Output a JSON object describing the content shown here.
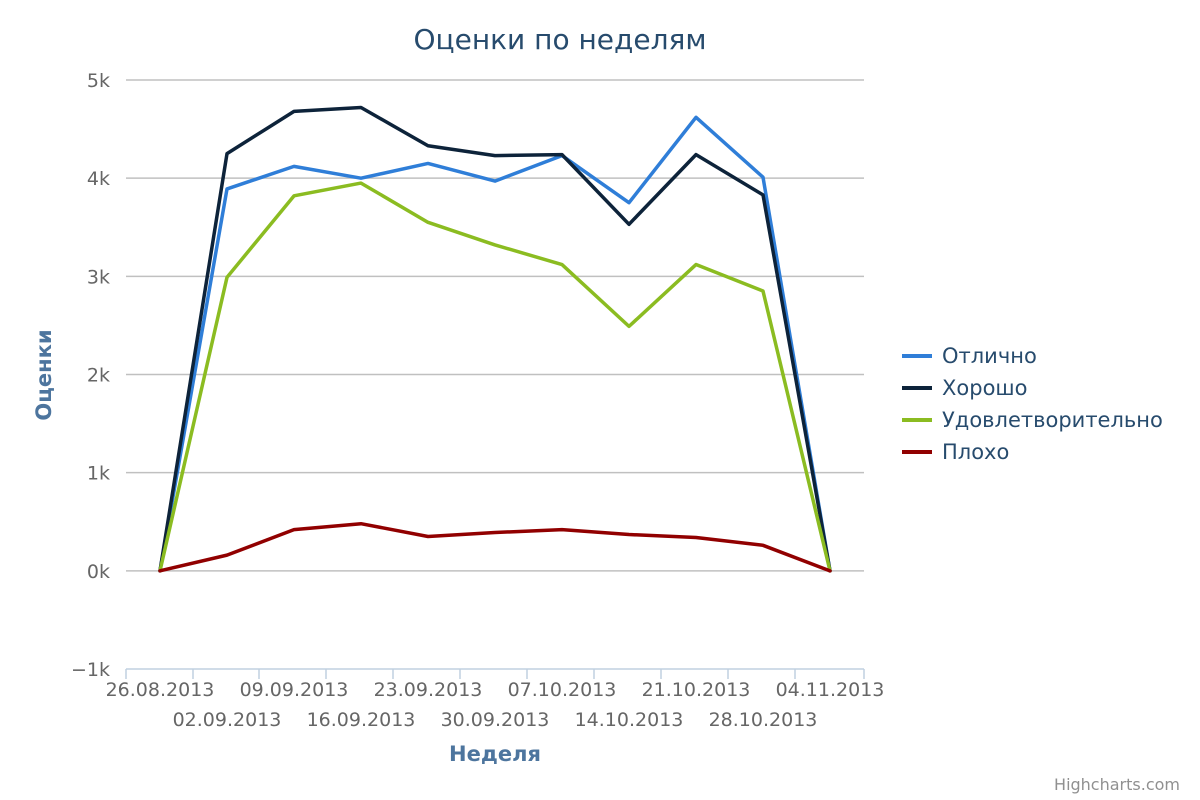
{
  "chart_data": {
    "type": "line",
    "title": "Оценки по неделям",
    "xlabel": "Неделя",
    "ylabel": "Оценки",
    "x": [
      "26.08.2013",
      "02.09.2013",
      "09.09.2013",
      "16.09.2013",
      "23.09.2013",
      "30.09.2013",
      "07.10.2013",
      "14.10.2013",
      "21.10.2013",
      "28.10.2013",
      "04.11.2013"
    ],
    "x_tick_labels": [
      "26.08.2013",
      "02.09.2013",
      "09.09.2013",
      "16.09.2013",
      "23.09.2013",
      "30.09.2013",
      "07.10.2013",
      "14.10.2013",
      "21.10.2013",
      "28.10.2013",
      "04.11.2013"
    ],
    "y_tick_labels": [
      "−1k",
      "0k",
      "1k",
      "2k",
      "3k",
      "4k",
      "5k"
    ],
    "y_ticks": [
      -1000,
      0,
      1000,
      2000,
      3000,
      4000,
      5000
    ],
    "ylim": [
      -1000,
      5000
    ],
    "grid": true,
    "legend_position": "right",
    "series": [
      {
        "name": "Отлично",
        "color": "#2f7ed8",
        "values": [
          [
            0,
            0
          ],
          [
            1,
            3890
          ],
          [
            2,
            4120
          ],
          [
            3,
            4000
          ],
          [
            4,
            4150
          ],
          [
            5,
            3970
          ],
          [
            6,
            4230
          ],
          [
            7,
            3750
          ],
          [
            8,
            4620
          ],
          [
            9,
            4010
          ],
          [
            10,
            0
          ]
        ]
      },
      {
        "name": "Хорошо",
        "color": "#0d233a",
        "values": [
          [
            0,
            0
          ],
          [
            1,
            4250
          ],
          [
            2,
            4680
          ],
          [
            3,
            4720
          ],
          [
            4,
            4330
          ],
          [
            5,
            4230
          ],
          [
            6,
            4240
          ],
          [
            7,
            3530
          ],
          [
            8,
            4240
          ],
          [
            9,
            3830
          ],
          [
            10,
            0
          ]
        ]
      },
      {
        "name": "Удовлетворительно",
        "color": "#8bbc21",
        "values": [
          [
            0,
            0
          ],
          [
            1,
            2990
          ],
          [
            2,
            3820
          ],
          [
            3,
            3950
          ],
          [
            4,
            3550
          ],
          [
            5,
            3320
          ],
          [
            6,
            3120
          ],
          [
            7,
            2490
          ],
          [
            8,
            3120
          ],
          [
            9,
            2850
          ],
          [
            10,
            0
          ]
        ]
      },
      {
        "name": "Плохо",
        "color": "#910000",
        "values": [
          [
            0,
            0
          ],
          [
            1,
            160
          ],
          [
            2,
            420
          ],
          [
            3,
            480
          ],
          [
            4,
            350
          ],
          [
            5,
            390
          ],
          [
            6,
            420
          ],
          [
            7,
            370
          ],
          [
            8,
            340
          ],
          [
            9,
            260
          ],
          [
            10,
            0
          ]
        ]
      }
    ]
  },
  "credits": "Highcharts.com"
}
